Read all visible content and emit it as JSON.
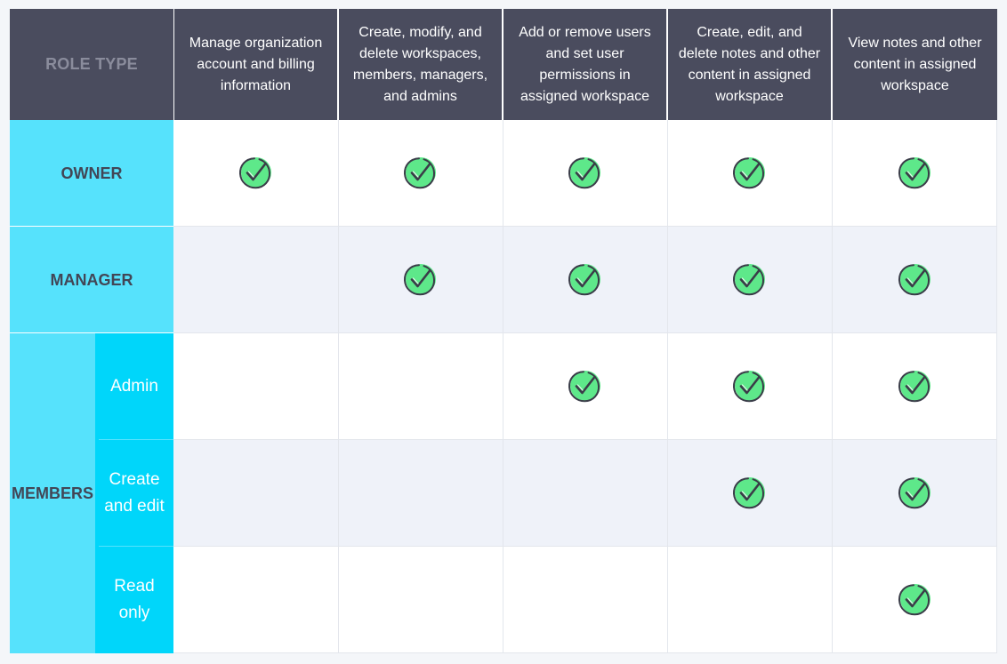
{
  "header": {
    "role_type": "ROLE TYPE",
    "columns": [
      "Manage organization account and billing information",
      "Create, modify, and delete workspaces, members, managers, and admins",
      "Add or remove users and set user permissions in assigned workspace",
      "Create, edit, and delete notes and other content in assigned workspace",
      "View notes and other content in assigned workspace"
    ]
  },
  "roles": {
    "owner": "OWNER",
    "manager": "MANAGER",
    "members": "MEMBERS",
    "admin": "Admin",
    "create_edit": "Create and edit",
    "read_only": "Read only"
  },
  "icons": {
    "check": "check-circle-icon"
  },
  "colors": {
    "header_bg": "#4a4c5e",
    "role_bg": "#56e2fc",
    "subrole_bg": "#00d6fa",
    "check_green": "#5ee88a"
  },
  "permissions": [
    {
      "role": "Owner",
      "values": [
        true,
        true,
        true,
        true,
        true
      ]
    },
    {
      "role": "Manager",
      "values": [
        false,
        true,
        true,
        true,
        true
      ]
    },
    {
      "role": "Admin",
      "values": [
        false,
        false,
        true,
        true,
        true
      ]
    },
    {
      "role": "Create and edit",
      "values": [
        false,
        false,
        false,
        true,
        true
      ]
    },
    {
      "role": "Read only",
      "values": [
        false,
        false,
        false,
        false,
        true
      ]
    }
  ]
}
